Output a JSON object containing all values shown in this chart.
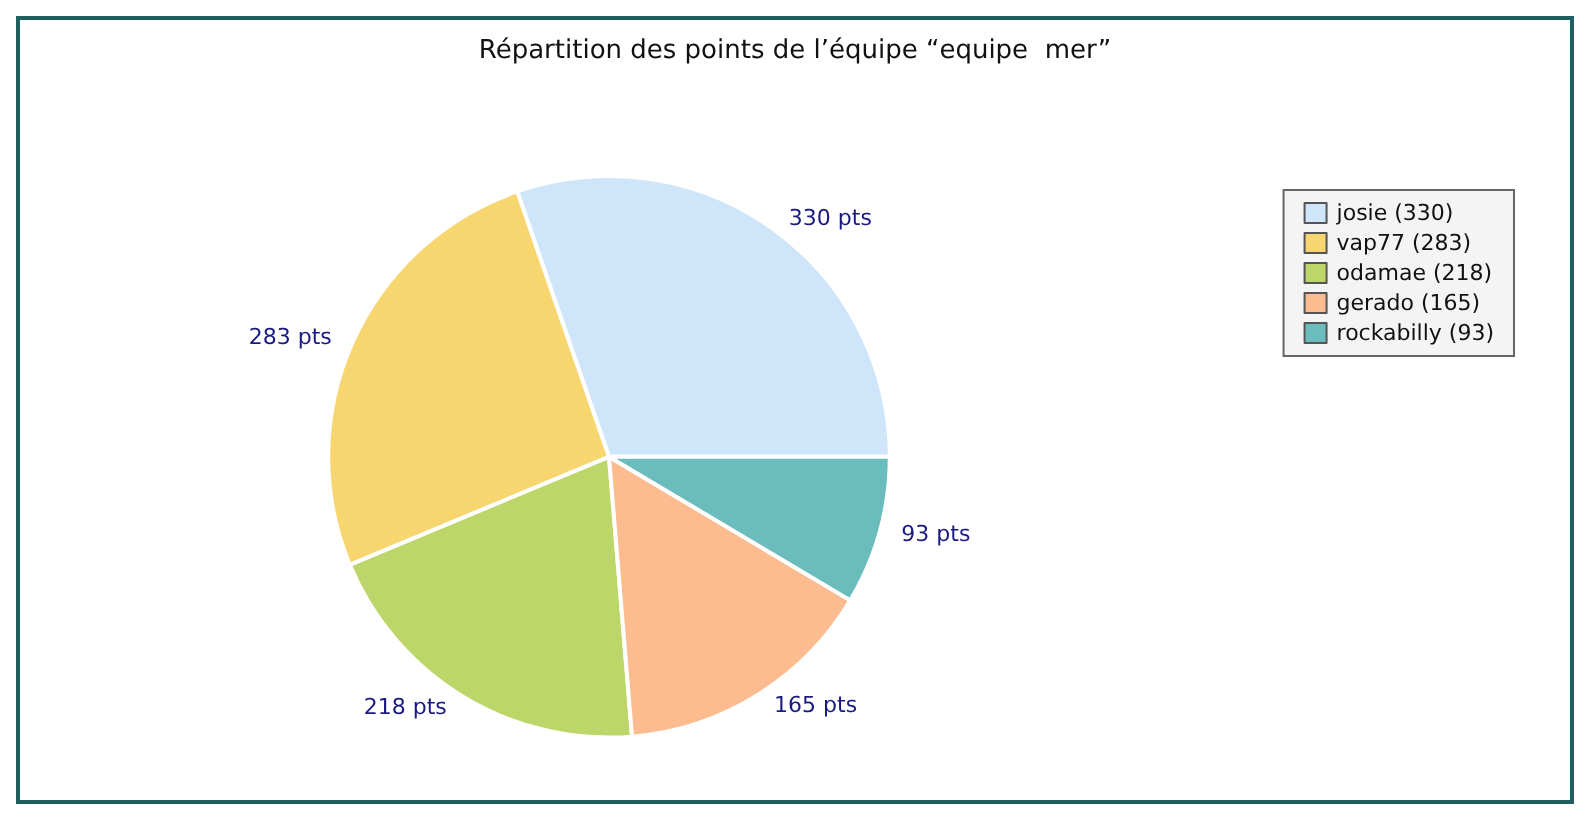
{
  "chart_data": {
    "type": "pie",
    "title": "Répartition des points de l’équipe “equipe  mer”",
    "categories": [
      "josie (330)",
      "vap77 (283)",
      "odamae (218)",
      "gerado (165)",
      "rockabilly (93)"
    ],
    "values": [
      330,
      283,
      218,
      165,
      93
    ],
    "colors": [
      "#cfe5f9",
      "#f7d56f",
      "#bcd66a",
      "#fdbc8f",
      "#6bbcbc"
    ],
    "value_labels": [
      "330 pts",
      "283 pts",
      "218 pts",
      "165 pts",
      "93 pts"
    ],
    "legend": "top right"
  }
}
